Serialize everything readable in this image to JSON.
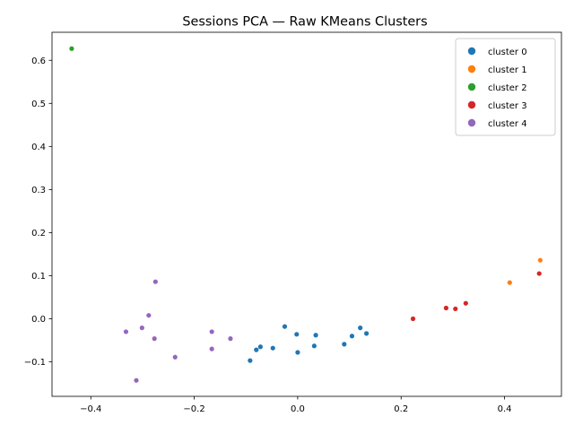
{
  "chart_data": {
    "type": "scatter",
    "title": "Sessions PCA — Raw KMeans Clusters",
    "xlabel": "",
    "ylabel": "",
    "xlim": [
      -0.475,
      0.51
    ],
    "ylim": [
      -0.18,
      0.665
    ],
    "xticks": [
      -0.4,
      -0.2,
      0.0,
      0.2,
      0.4
    ],
    "xtick_labels": [
      "−0.4",
      "−0.2",
      "0.0",
      "0.2",
      "0.4"
    ],
    "yticks": [
      -0.1,
      0.0,
      0.1,
      0.2,
      0.3,
      0.4,
      0.5,
      0.6
    ],
    "ytick_labels": [
      "−0.1",
      "0.0",
      "0.1",
      "0.2",
      "0.3",
      "0.4",
      "0.5",
      "0.6"
    ],
    "grid": false,
    "legend_position": "top-right",
    "series": [
      {
        "name": "cluster 0",
        "color": "#1f77b4",
        "points": [
          [
            -0.092,
            -0.097
          ],
          [
            -0.08,
            -0.072
          ],
          [
            -0.072,
            -0.065
          ],
          [
            -0.048,
            -0.068
          ],
          [
            -0.025,
            -0.018
          ],
          [
            -0.002,
            -0.036
          ],
          [
            0.0,
            -0.078
          ],
          [
            0.032,
            -0.063
          ],
          [
            0.035,
            -0.038
          ],
          [
            0.09,
            -0.059
          ],
          [
            0.105,
            -0.04
          ],
          [
            0.121,
            -0.021
          ],
          [
            0.133,
            -0.034
          ]
        ]
      },
      {
        "name": "cluster 1",
        "color": "#ff7f0e",
        "points": [
          [
            0.41,
            0.084
          ],
          [
            0.469,
            0.136
          ]
        ]
      },
      {
        "name": "cluster 2",
        "color": "#2ca02c",
        "points": [
          [
            -0.437,
            0.627
          ]
        ]
      },
      {
        "name": "cluster 3",
        "color": "#d62728",
        "points": [
          [
            0.223,
            0.0
          ],
          [
            0.287,
            0.025
          ],
          [
            0.305,
            0.023
          ],
          [
            0.325,
            0.036
          ],
          [
            0.467,
            0.105
          ]
        ]
      },
      {
        "name": "cluster 4",
        "color": "#9467bd",
        "points": [
          [
            -0.332,
            -0.03
          ],
          [
            -0.312,
            -0.143
          ],
          [
            -0.301,
            -0.021
          ],
          [
            -0.288,
            0.008
          ],
          [
            -0.277,
            -0.046
          ],
          [
            -0.275,
            0.086
          ],
          [
            -0.237,
            -0.089
          ],
          [
            -0.166,
            -0.03
          ],
          [
            -0.166,
            -0.07
          ],
          [
            -0.13,
            -0.046
          ]
        ]
      }
    ]
  }
}
